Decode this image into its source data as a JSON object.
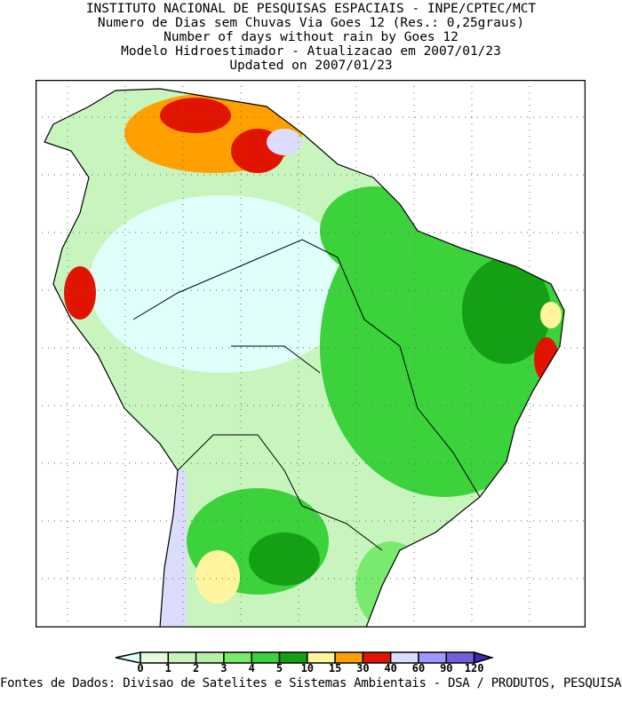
{
  "title_lines": [
    "INSTITUTO NACIONAL DE PESQUISAS ESPACIAIS - INPE/CPTEC/MCT",
    "Numero de Dias sem Chuvas Via Goes 12 (Res.: 0,25graus)",
    "Number of days without rain by Goes 12",
    "Modelo Hidroestimador - Atualizacao em 2007/01/23",
    "Updated on 2007/01/23"
  ],
  "colorbar": {
    "labels": [
      "0",
      "1",
      "2",
      "3",
      "4",
      "5",
      "10",
      "15",
      "30",
      "40",
      "60",
      "90",
      "120"
    ],
    "colors": [
      "#e0fffa",
      "#e6fae0",
      "#c8f5be",
      "#b4f0a8",
      "#78eb6e",
      "#3cd23c",
      "#14a014",
      "#fff5a0",
      "#ffa000",
      "#e11400",
      "#dcdcff",
      "#a096ff",
      "#7060dc",
      "#3c28b4"
    ]
  },
  "footer": "Fontes de Dados: Divisao de Satelites e Sistemas Ambientais - DSA / PRODUTOS, PESQUISAS"
}
